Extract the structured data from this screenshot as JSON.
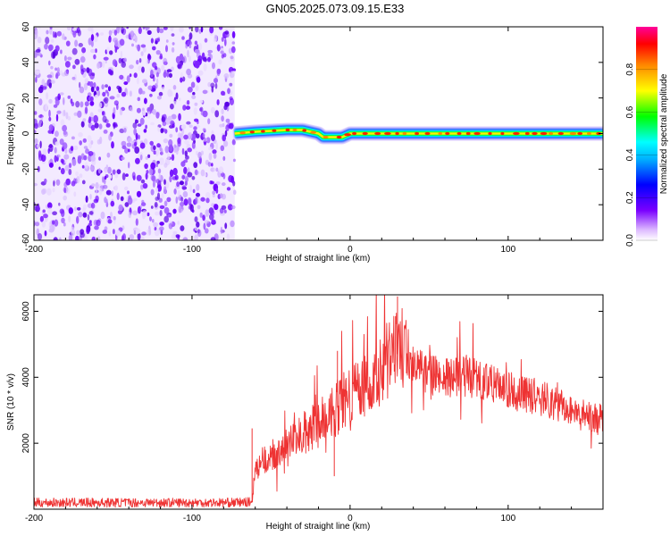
{
  "title": "GN05.2025.073.09.15.E33",
  "chart_data": [
    {
      "type": "heatmap",
      "xlabel": "Height of straight line (km)",
      "ylabel": "Frequency (Hz)",
      "xlim": [
        -200,
        160
      ],
      "ylim": [
        -60,
        60
      ],
      "x_ticks": [
        -200,
        -100,
        0,
        100
      ],
      "y_ticks": [
        -60,
        -40,
        -20,
        0,
        20,
        40,
        60
      ],
      "noise_region_x": [
        -200,
        -73
      ],
      "signal_track": [
        {
          "x": -73,
          "y": 0
        },
        {
          "x": -60,
          "y": 1
        },
        {
          "x": -40,
          "y": 2
        },
        {
          "x": -30,
          "y": 2
        },
        {
          "x": -20,
          "y": 0
        },
        {
          "x": -17,
          "y": -2
        },
        {
          "x": -5,
          "y": -2
        },
        {
          "x": 0,
          "y": 0
        },
        {
          "x": 20,
          "y": 0
        },
        {
          "x": 60,
          "y": 0
        },
        {
          "x": 100,
          "y": 0
        },
        {
          "x": 160,
          "y": 0
        }
      ],
      "colorbar": {
        "label": "Normalized spectral amplitude",
        "range": [
          0,
          1
        ],
        "ticks": [
          "0.0",
          "0.2",
          "0.4",
          "0.6",
          "0.8"
        ],
        "colors": [
          "#ffffff",
          "#cc88ff",
          "#6600ff",
          "#0000ff",
          "#00ffff",
          "#00ff00",
          "#ffff00",
          "#ff8800",
          "#ff0000",
          "#ff00aa"
        ]
      }
    },
    {
      "type": "line",
      "xlabel": "Height of straight line (km)",
      "ylabel": "SNR (10 * v/v)",
      "xlim": [
        -200,
        160
      ],
      "ylim": [
        0,
        6500
      ],
      "x_ticks": [
        -200,
        -100,
        0,
        100
      ],
      "y_ticks": [
        2000,
        4000,
        6000
      ],
      "color": "#ee3333",
      "series": [
        {
          "x": [
            -200,
            -150,
            -100,
            -75,
            -62,
            -60,
            -55,
            -50,
            -40,
            -30,
            -20,
            -10,
            0,
            10,
            20,
            30,
            35,
            40,
            50,
            60,
            70,
            80,
            90,
            100,
            110,
            120,
            130,
            140,
            150,
            160
          ],
          "y": [
            200,
            200,
            200,
            200,
            220,
            1100,
            1500,
            1500,
            1900,
            2300,
            2600,
            3000,
            3400,
            3800,
            4300,
            4700,
            5000,
            4300,
            4100,
            4000,
            4050,
            4000,
            3800,
            3600,
            3500,
            3400,
            3200,
            3050,
            2850,
            2700
          ]
        }
      ]
    }
  ]
}
